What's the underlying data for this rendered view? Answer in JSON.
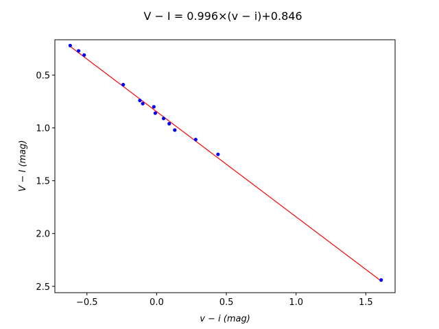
{
  "chart_data": {
    "type": "scatter",
    "title": "V − I = 0.996×(v − i)+0.846",
    "xlabel": "v − i  (mag)",
    "ylabel": "V − I  (mag)",
    "xlim": [
      -0.73,
      1.71
    ],
    "ylim": [
      2.56,
      0.165
    ],
    "y_inverted": true,
    "grid": false,
    "xticks": [
      -0.5,
      0.0,
      0.5,
      1.0,
      1.5
    ],
    "xtick_labels": [
      "−0.5",
      "0.0",
      "0.5",
      "1.0",
      "1.5"
    ],
    "yticks": [
      0.5,
      1.0,
      1.5,
      2.0,
      2.5
    ],
    "ytick_labels": [
      "0.5",
      "1.0",
      "1.5",
      "2.0",
      "2.5"
    ],
    "points": {
      "color": "#0000ff",
      "x": [
        -0.62,
        -0.56,
        -0.52,
        -0.24,
        -0.12,
        -0.1,
        -0.02,
        -0.01,
        0.05,
        0.09,
        0.13,
        0.28,
        0.44,
        1.61
      ],
      "y": [
        0.22,
        0.27,
        0.31,
        0.59,
        0.74,
        0.77,
        0.8,
        0.86,
        0.91,
        0.96,
        1.02,
        1.11,
        1.25,
        2.44
      ]
    },
    "fit_line": {
      "color": "#ff0000",
      "slope": 0.996,
      "intercept": 0.846,
      "x_range": [
        -0.62,
        1.61
      ]
    }
  }
}
